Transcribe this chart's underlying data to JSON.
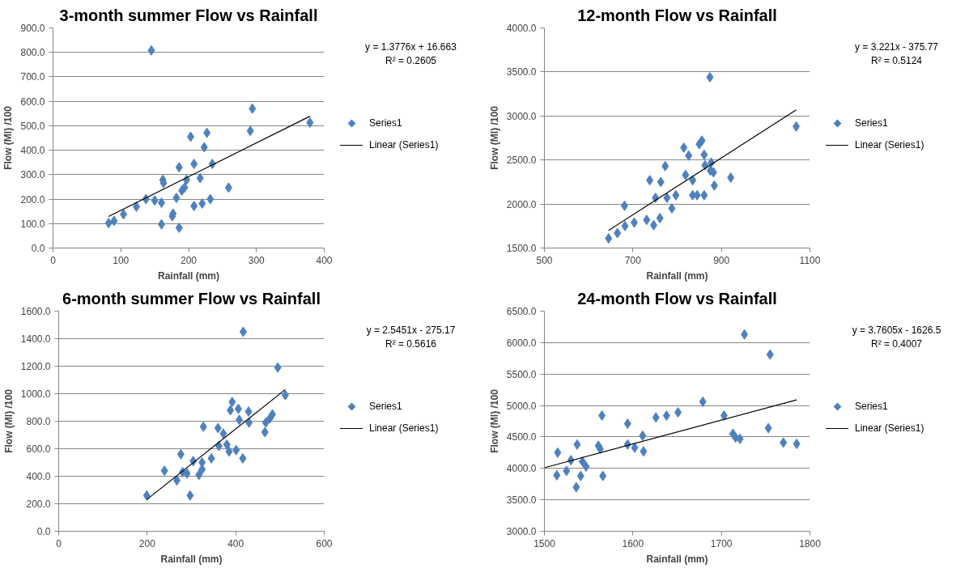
{
  "chart_data": [
    {
      "type": "scatter",
      "title": "3-month summer Flow vs Rainfall",
      "xlabel": "Rainfall (mm)",
      "ylabel": "Flow (Ml) /100",
      "annotations": [
        "y = 1.3776x + 16.663",
        "R² = 0.2605"
      ],
      "marker": "diamond",
      "grid": "y",
      "legend": "right",
      "xlim": [
        0,
        400
      ],
      "xticks": [
        0,
        100,
        200,
        300,
        400
      ],
      "ylim": [
        0,
        900
      ],
      "yticks": [
        {
          "value": 0,
          "label": "0.0"
        },
        {
          "value": 100,
          "label": "100.0"
        },
        {
          "value": 200,
          "label": "200.0"
        },
        {
          "value": 300,
          "label": "300.0"
        },
        {
          "value": 400,
          "label": "400.0"
        },
        {
          "value": 500,
          "label": "500.0"
        },
        {
          "value": 600,
          "label": "600.0"
        },
        {
          "value": 700,
          "label": "700.0"
        },
        {
          "value": 800,
          "label": "800.0"
        },
        {
          "value": 900,
          "label": "900.0"
        }
      ],
      "series": [
        {
          "name": "Series1",
          "color": "#4f81bd",
          "x": [
            82,
            90,
            104,
            123,
            137,
            150,
            145,
            160,
            160,
            162,
            163,
            176,
            177,
            182,
            186,
            186,
            190,
            194,
            197,
            203,
            208,
            208,
            217,
            220,
            223,
            227,
            232,
            235,
            259,
            291,
            294,
            379
          ],
          "values": [
            102,
            111,
            138,
            169,
            200,
            194,
            808,
            185,
            97,
            279,
            266,
            130,
            141,
            205,
            330,
            83,
            235,
            247,
            279,
            455,
            172,
            344,
            286,
            182,
            412,
            471,
            200,
            344,
            247,
            479,
            570,
            513
          ]
        },
        {
          "name": "Linear (Series1)",
          "type": "line",
          "color": "#000000",
          "marker": "none",
          "x": [
            82,
            379
          ],
          "values": [
            129,
            539
          ]
        }
      ]
    },
    {
      "type": "scatter",
      "title": "12-month Flow vs Rainfall",
      "xlabel": "Rainfall (mm)",
      "ylabel": "Flow (Ml) /100",
      "annotations": [
        "y = 3.221x - 375.77",
        "R² = 0.5124"
      ],
      "marker": "diamond",
      "grid": "y",
      "legend": "right",
      "xlim": [
        500,
        1100
      ],
      "xticks": [
        500,
        700,
        900,
        1100
      ],
      "ylim": [
        1500,
        4000
      ],
      "yticks": [
        {
          "value": 1500,
          "label": "1500.0"
        },
        {
          "value": 2000,
          "label": "2000.0"
        },
        {
          "value": 2500,
          "label": "2500.0"
        },
        {
          "value": 3000,
          "label": "3000.0"
        },
        {
          "value": 3500,
          "label": "3500.0"
        },
        {
          "value": 4000,
          "label": "4000.0"
        }
      ],
      "series": [
        {
          "name": "Series1",
          "color": "#4f81bd",
          "x": [
            645,
            665,
            681,
            682,
            703,
            731,
            738,
            747,
            751,
            761,
            763,
            773,
            777,
            788,
            797,
            815,
            819,
            826,
            835,
            835,
            845,
            850,
            856,
            861,
            863,
            861,
            874,
            875,
            877,
            882,
            884,
            921,
            1069
          ],
          "values": [
            1610,
            1670,
            1980,
            1750,
            1790,
            1820,
            2270,
            1760,
            2070,
            1840,
            2250,
            2430,
            2070,
            1950,
            2100,
            2640,
            2330,
            2550,
            2270,
            2100,
            2100,
            2680,
            2720,
            2560,
            2440,
            2100,
            3440,
            2380,
            2470,
            2360,
            2210,
            2300,
            2880
          ]
        },
        {
          "name": "Linear (Series1)",
          "type": "line",
          "color": "#000000",
          "marker": "none",
          "x": [
            645,
            1069
          ],
          "values": [
            1700,
            3070
          ]
        }
      ]
    },
    {
      "type": "scatter",
      "title": "6-month summer Flow vs Rainfall",
      "xlabel": "Rainfall (mm)",
      "ylabel": "Flow (Ml) /100",
      "annotations": [
        "y = 2.5451x - 275.17",
        "R² = 0.5616"
      ],
      "marker": "diamond",
      "grid": "y",
      "legend": "right",
      "xlim": [
        0,
        600
      ],
      "xticks": [
        0,
        200,
        400,
        600
      ],
      "ylim": [
        0,
        1600
      ],
      "yticks": [
        {
          "value": 0,
          "label": "0.0"
        },
        {
          "value": 200,
          "label": "200.0"
        },
        {
          "value": 400,
          "label": "400.0"
        },
        {
          "value": 600,
          "label": "600.0"
        },
        {
          "value": 800,
          "label": "800.0"
        },
        {
          "value": 1000,
          "label": "1000.0"
        },
        {
          "value": 1200,
          "label": "1200.0"
        },
        {
          "value": 1400,
          "label": "1400.0"
        },
        {
          "value": 1600,
          "label": "1600.0"
        }
      ],
      "series": [
        {
          "name": "Series1",
          "color": "#4f81bd",
          "x": [
            199,
            239,
            267,
            276,
            280,
            290,
            297,
            304,
            317,
            324,
            324,
            327,
            345,
            360,
            362,
            372,
            380,
            385,
            388,
            392,
            401,
            406,
            408,
            416,
            417,
            429,
            430,
            466,
            468,
            477,
            483,
            495,
            512
          ],
          "values": [
            260,
            440,
            370,
            560,
            430,
            420,
            260,
            510,
            410,
            450,
            500,
            760,
            530,
            750,
            620,
            710,
            630,
            580,
            880,
            940,
            590,
            890,
            810,
            530,
            1450,
            870,
            790,
            720,
            790,
            820,
            850,
            1190,
            990
          ]
        },
        {
          "name": "Linear (Series1)",
          "type": "line",
          "color": "#000000",
          "marker": "none",
          "x": [
            199,
            512
          ],
          "values": [
            230,
            1030
          ]
        }
      ]
    },
    {
      "type": "scatter",
      "title": "24-month Flow vs Rainfall",
      "xlabel": "Rainfall (mm)",
      "ylabel": "Flow (Ml) /100",
      "annotations": [
        "y = 3.7605x - 1626.5",
        "R² = 0.4007"
      ],
      "marker": "diamond",
      "grid": "y",
      "legend": "right",
      "xlim": [
        1500,
        1800
      ],
      "xticks": [
        1500,
        1600,
        1700,
        1800
      ],
      "ylim": [
        3000,
        6500
      ],
      "yticks": [
        {
          "value": 3000,
          "label": "3000.0"
        },
        {
          "value": 3500,
          "label": "3500.0"
        },
        {
          "value": 4000,
          "label": "4000.0"
        },
        {
          "value": 4500,
          "label": "4500.0"
        },
        {
          "value": 5000,
          "label": "5000.0"
        },
        {
          "value": 5500,
          "label": "5500.0"
        },
        {
          "value": 6000,
          "label": "6000.0"
        },
        {
          "value": 6500,
          "label": "6500.0"
        }
      ],
      "series": [
        {
          "name": "Series1",
          "color": "#4f81bd",
          "x": [
            1514,
            1515,
            1525,
            1530,
            1536,
            1537,
            1541,
            1543,
            1547,
            1561,
            1563,
            1565,
            1566,
            1594,
            1594,
            1602,
            1611,
            1612,
            1626,
            1638,
            1651,
            1679,
            1703,
            1713,
            1716,
            1721,
            1726,
            1753,
            1755,
            1770,
            1785
          ],
          "values": [
            3890,
            4250,
            3960,
            4130,
            3700,
            4380,
            3880,
            4110,
            4030,
            4360,
            4310,
            4840,
            3880,
            4710,
            4380,
            4330,
            4520,
            4270,
            4810,
            4840,
            4890,
            5060,
            4840,
            4550,
            4490,
            4470,
            6130,
            4640,
            5810,
            4410,
            4390
          ]
        },
        {
          "name": "Linear (Series1)",
          "type": "line",
          "color": "#000000",
          "marker": "none",
          "x": [
            1500,
            1785
          ],
          "values": [
            4010,
            5090
          ]
        }
      ]
    }
  ]
}
